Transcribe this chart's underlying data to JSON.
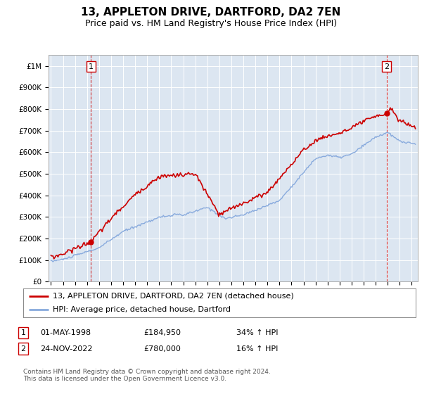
{
  "title": "13, APPLETON DRIVE, DARTFORD, DA2 7EN",
  "subtitle": "Price paid vs. HM Land Registry's House Price Index (HPI)",
  "ylim": [
    0,
    1050000
  ],
  "yticks": [
    0,
    100000,
    200000,
    300000,
    400000,
    500000,
    600000,
    700000,
    800000,
    900000,
    1000000
  ],
  "ytick_labels": [
    "£0",
    "£100K",
    "£200K",
    "£300K",
    "£400K",
    "£500K",
    "£600K",
    "£700K",
    "£800K",
    "£900K",
    "£1M"
  ],
  "xlim_start": 1994.8,
  "xlim_end": 2025.5,
  "background_color": "#dce6f1",
  "line_color_property": "#cc0000",
  "line_color_hpi": "#88aadd",
  "sale1_x": 1998.33,
  "sale1_y": 184950,
  "sale2_x": 2022.9,
  "sale2_y": 780000,
  "legend_label_property": "13, APPLETON DRIVE, DARTFORD, DA2 7EN (detached house)",
  "legend_label_hpi": "HPI: Average price, detached house, Dartford",
  "footer_text": "Contains HM Land Registry data © Crown copyright and database right 2024.\nThis data is licensed under the Open Government Licence v3.0.",
  "annot1_label": "1",
  "annot1_date": "01-MAY-1998",
  "annot1_price": "£184,950",
  "annot1_hpi": "34% ↑ HPI",
  "annot2_label": "2",
  "annot2_date": "24-NOV-2022",
  "annot2_price": "£780,000",
  "annot2_hpi": "16% ↑ HPI"
}
